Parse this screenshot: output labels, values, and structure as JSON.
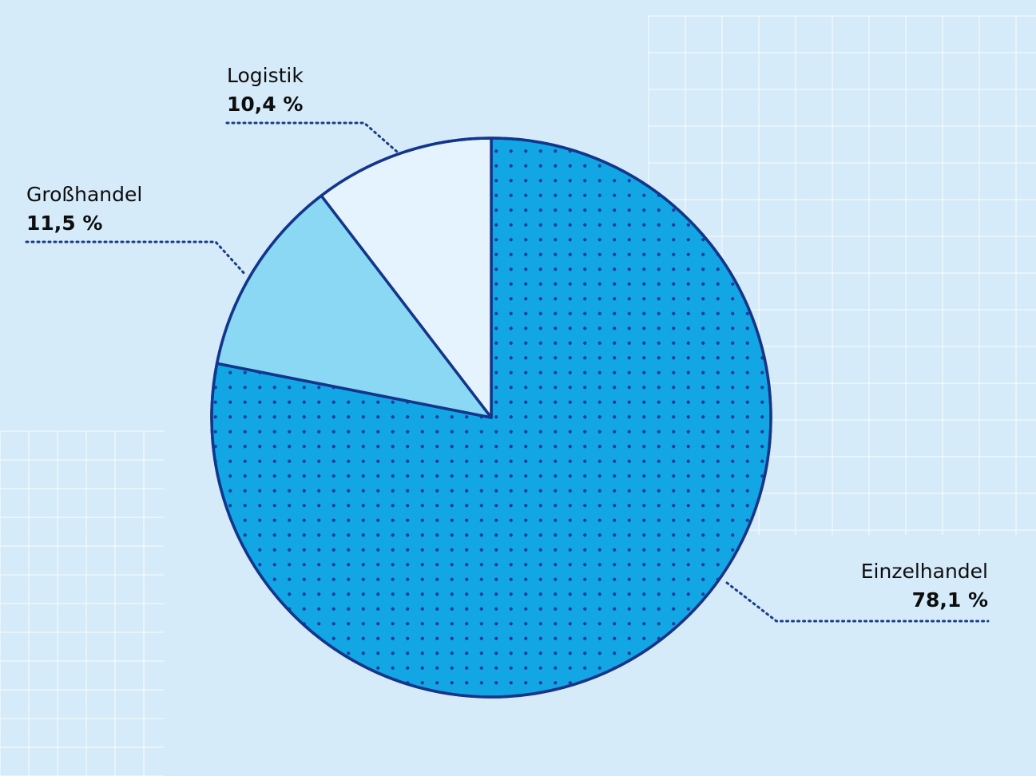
{
  "chart_data": {
    "type": "pie",
    "slices": [
      {
        "label": "Einzelhandel",
        "value": 78.1,
        "value_text": "78,1 %",
        "color": "#12a6e4",
        "pattern": "dots"
      },
      {
        "label": "Großhandel",
        "value": 11.5,
        "value_text": "11,5 %",
        "color": "#8ad8f3",
        "pattern": "none"
      },
      {
        "label": "Logistik",
        "value": 10.4,
        "value_text": "10,4 %",
        "color": "#e4f3fd",
        "pattern": "none"
      }
    ],
    "legend": "none",
    "start_direction": "top, clockwise"
  },
  "colors": {
    "background": "#d6ebfa",
    "outline": "#13358a",
    "dots": "#1a3d9a",
    "leader": "#1a3d8a",
    "grid": "#ffffff"
  }
}
